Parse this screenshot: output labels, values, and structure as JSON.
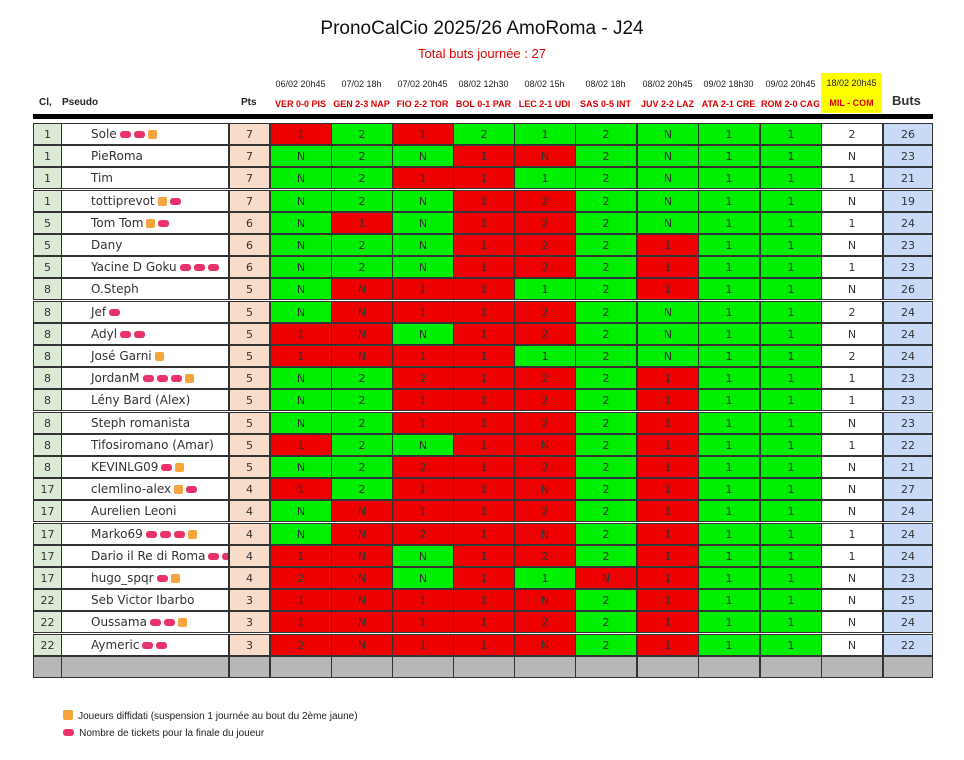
{
  "title": "PronoCalCio 2025/26 AmoRoma - J24",
  "subtitle": "Total buts journée : 27",
  "headers": {
    "rank": "Cl,",
    "name": "Pseudo",
    "pts": "Pts",
    "buts": "Buts"
  },
  "matches": [
    {
      "date": "06/02 20h45",
      "label": "VER 0-0 PIS"
    },
    {
      "date": "07/02 18h",
      "label": "GEN 2-3 NAP"
    },
    {
      "date": "07/02 20h45",
      "label": "FIO 2-2 TOR"
    },
    {
      "date": "08/02 12h30",
      "label": "BOL 0-1 PAR"
    },
    {
      "date": "08/02 15h",
      "label": "LEC 2-1 UDI"
    },
    {
      "date": "08/02 18h",
      "label": "SAS 0-5 INT"
    },
    {
      "date": "08/02 20h45",
      "label": "JUV 2-2 LAZ"
    },
    {
      "date": "09/02 18h30",
      "label": "ATA 2-1 CRE"
    },
    {
      "date": "09/02 20h45",
      "label": "ROM 2-0 CAG"
    },
    {
      "date": "18/02 20h45",
      "label": "MIL - COM"
    }
  ],
  "colors": {
    "correct": "#00ee00",
    "wrong": "#ee0000",
    "pending": "#ffffff",
    "highlight": "#ffff00",
    "rank_bg": "#dbead5",
    "pts_bg": "#f7dcc9",
    "buts_bg": "#c9daf7",
    "suspension": "#f4a63c",
    "ticket": "#e8336a"
  },
  "players": [
    {
      "rank": "1",
      "name": "Sole",
      "tickets_before": 2,
      "susp": true,
      "tickets_after": 0,
      "pts": "7",
      "picks": [
        "1",
        "2",
        "1",
        "2",
        "1",
        "2",
        "N",
        "1",
        "1",
        "2"
      ],
      "res": [
        "R",
        "G",
        "R",
        "G",
        "G",
        "G",
        "G",
        "G",
        "G",
        "W"
      ],
      "buts": "26"
    },
    {
      "rank": "1",
      "name": "PieRoma",
      "tickets_before": 0,
      "susp": false,
      "tickets_after": 0,
      "pts": "7",
      "picks": [
        "N",
        "2",
        "N",
        "1",
        "N",
        "2",
        "N",
        "1",
        "1",
        "N"
      ],
      "res": [
        "G",
        "G",
        "G",
        "R",
        "R",
        "G",
        "G",
        "G",
        "G",
        "W"
      ],
      "buts": "23"
    },
    {
      "rank": "1",
      "name": "Tim",
      "tickets_before": 0,
      "susp": false,
      "tickets_after": 0,
      "pts": "7",
      "picks": [
        "N",
        "2",
        "1",
        "1",
        "1",
        "2",
        "N",
        "1",
        "1",
        "1"
      ],
      "res": [
        "G",
        "G",
        "R",
        "R",
        "G",
        "G",
        "G",
        "G",
        "G",
        "W"
      ],
      "buts": "21"
    },
    {
      "rank": "1",
      "name": "tottiprevot",
      "tickets_before": 0,
      "susp": true,
      "tickets_after": 1,
      "pts": "7",
      "picks": [
        "N",
        "2",
        "N",
        "1",
        "2",
        "2",
        "N",
        "1",
        "1",
        "N"
      ],
      "res": [
        "G",
        "G",
        "G",
        "R",
        "R",
        "G",
        "G",
        "G",
        "G",
        "W"
      ],
      "buts": "19"
    },
    {
      "rank": "5",
      "name": "Tom Tom",
      "tickets_before": 0,
      "susp": true,
      "tickets_after": 1,
      "pts": "6",
      "picks": [
        "N",
        "1",
        "N",
        "1",
        "2",
        "2",
        "N",
        "1",
        "1",
        "1"
      ],
      "res": [
        "G",
        "R",
        "G",
        "R",
        "R",
        "G",
        "G",
        "G",
        "G",
        "W"
      ],
      "buts": "24"
    },
    {
      "rank": "5",
      "name": "Dany",
      "tickets_before": 0,
      "susp": false,
      "tickets_after": 0,
      "pts": "6",
      "picks": [
        "N",
        "2",
        "N",
        "1",
        "2",
        "2",
        "1",
        "1",
        "1",
        "N"
      ],
      "res": [
        "G",
        "G",
        "G",
        "R",
        "R",
        "G",
        "R",
        "G",
        "G",
        "W"
      ],
      "buts": "23"
    },
    {
      "rank": "5",
      "name": "Yacine D Goku",
      "tickets_before": 3,
      "susp": false,
      "tickets_after": 0,
      "pts": "6",
      "picks": [
        "N",
        "2",
        "N",
        "1",
        "2",
        "2",
        "1",
        "1",
        "1",
        "1"
      ],
      "res": [
        "G",
        "G",
        "G",
        "R",
        "R",
        "G",
        "R",
        "G",
        "G",
        "W"
      ],
      "buts": "23"
    },
    {
      "rank": "8",
      "name": "O.Steph",
      "tickets_before": 0,
      "susp": false,
      "tickets_after": 0,
      "pts": "5",
      "picks": [
        "N",
        "N",
        "1",
        "1",
        "1",
        "2",
        "1",
        "1",
        "1",
        "N"
      ],
      "res": [
        "G",
        "R",
        "R",
        "R",
        "G",
        "G",
        "R",
        "G",
        "G",
        "W"
      ],
      "buts": "26"
    },
    {
      "rank": "8",
      "name": "Jef",
      "tickets_before": 1,
      "susp": false,
      "tickets_after": 0,
      "pts": "5",
      "picks": [
        "N",
        "N",
        "1",
        "1",
        "2",
        "2",
        "N",
        "1",
        "1",
        "2"
      ],
      "res": [
        "G",
        "R",
        "R",
        "R",
        "R",
        "G",
        "G",
        "G",
        "G",
        "W"
      ],
      "buts": "24"
    },
    {
      "rank": "8",
      "name": "Adyl",
      "tickets_before": 2,
      "susp": false,
      "tickets_after": 0,
      "pts": "5",
      "picks": [
        "1",
        "N",
        "N",
        "1",
        "2",
        "2",
        "N",
        "1",
        "1",
        "N"
      ],
      "res": [
        "R",
        "R",
        "G",
        "R",
        "R",
        "G",
        "G",
        "G",
        "G",
        "W"
      ],
      "buts": "24"
    },
    {
      "rank": "8",
      "name": "José Garni",
      "tickets_before": 0,
      "susp": true,
      "tickets_after": 0,
      "pts": "5",
      "picks": [
        "1",
        "N",
        "1",
        "1",
        "1",
        "2",
        "N",
        "1",
        "1",
        "2"
      ],
      "res": [
        "R",
        "R",
        "R",
        "R",
        "G",
        "G",
        "G",
        "G",
        "G",
        "W"
      ],
      "buts": "24"
    },
    {
      "rank": "8",
      "name": "JordanM",
      "tickets_before": 3,
      "susp": true,
      "tickets_after": 0,
      "pts": "5",
      "picks": [
        "N",
        "2",
        "2",
        "1",
        "2",
        "2",
        "1",
        "1",
        "1",
        "1"
      ],
      "res": [
        "G",
        "G",
        "R",
        "R",
        "R",
        "G",
        "R",
        "G",
        "G",
        "W"
      ],
      "buts": "23"
    },
    {
      "rank": "8",
      "name": "Lény Bard (Alex)",
      "tickets_before": 0,
      "susp": false,
      "tickets_after": 0,
      "pts": "5",
      "picks": [
        "N",
        "2",
        "1",
        "1",
        "2",
        "2",
        "1",
        "1",
        "1",
        "1"
      ],
      "res": [
        "G",
        "G",
        "R",
        "R",
        "R",
        "G",
        "R",
        "G",
        "G",
        "W"
      ],
      "buts": "23"
    },
    {
      "rank": "8",
      "name": "Steph romanista",
      "tickets_before": 0,
      "susp": false,
      "tickets_after": 0,
      "pts": "5",
      "picks": [
        "N",
        "2",
        "1",
        "1",
        "2",
        "2",
        "1",
        "1",
        "1",
        "N"
      ],
      "res": [
        "G",
        "G",
        "R",
        "R",
        "R",
        "G",
        "R",
        "G",
        "G",
        "W"
      ],
      "buts": "23"
    },
    {
      "rank": "8",
      "name": "Tifosiromano (Amar)",
      "tickets_before": 0,
      "susp": false,
      "tickets_after": 0,
      "pts": "5",
      "picks": [
        "1",
        "2",
        "N",
        "1",
        "N",
        "2",
        "1",
        "1",
        "1",
        "1"
      ],
      "res": [
        "R",
        "G",
        "G",
        "R",
        "R",
        "G",
        "R",
        "G",
        "G",
        "W"
      ],
      "buts": "22"
    },
    {
      "rank": "8",
      "name": "KEVINLG09",
      "tickets_before": 1,
      "susp": true,
      "tickets_after": 0,
      "pts": "5",
      "picks": [
        "N",
        "2",
        "2",
        "1",
        "2",
        "2",
        "1",
        "1",
        "1",
        "N"
      ],
      "res": [
        "G",
        "G",
        "R",
        "R",
        "R",
        "G",
        "R",
        "G",
        "G",
        "W"
      ],
      "buts": "21"
    },
    {
      "rank": "17",
      "name": "clemlino-alex",
      "tickets_before": 0,
      "susp": true,
      "tickets_after": 1,
      "pts": "4",
      "picks": [
        "1",
        "2",
        "1",
        "1",
        "N",
        "2",
        "1",
        "1",
        "1",
        "N"
      ],
      "res": [
        "R",
        "G",
        "R",
        "R",
        "R",
        "G",
        "R",
        "G",
        "G",
        "W"
      ],
      "buts": "27"
    },
    {
      "rank": "17",
      "name": "Aurelien Leoni",
      "tickets_before": 0,
      "susp": false,
      "tickets_after": 0,
      "pts": "4",
      "picks": [
        "N",
        "N",
        "1",
        "1",
        "2",
        "2",
        "1",
        "1",
        "1",
        "N"
      ],
      "res": [
        "G",
        "R",
        "R",
        "R",
        "R",
        "G",
        "R",
        "G",
        "G",
        "W"
      ],
      "buts": "24"
    },
    {
      "rank": "17",
      "name": "Marko69",
      "tickets_before": 3,
      "susp": true,
      "tickets_after": 0,
      "pts": "4",
      "picks": [
        "N",
        "N",
        "2",
        "1",
        "N",
        "2",
        "1",
        "1",
        "1",
        "1"
      ],
      "res": [
        "G",
        "R",
        "R",
        "R",
        "R",
        "G",
        "R",
        "G",
        "G",
        "W"
      ],
      "buts": "24"
    },
    {
      "rank": "17",
      "name": "Dario il Re di Roma",
      "tickets_before": 2,
      "susp": false,
      "tickets_after": 0,
      "pts": "4",
      "picks": [
        "1",
        "N",
        "N",
        "1",
        "2",
        "2",
        "1",
        "1",
        "1",
        "1"
      ],
      "res": [
        "R",
        "R",
        "G",
        "R",
        "R",
        "G",
        "R",
        "G",
        "G",
        "W"
      ],
      "buts": "24"
    },
    {
      "rank": "17",
      "name": "hugo_spqr",
      "tickets_before": 1,
      "susp": true,
      "tickets_after": 0,
      "pts": "4",
      "picks": [
        "2",
        "N",
        "N",
        "1",
        "1",
        "N",
        "1",
        "1",
        "1",
        "N"
      ],
      "res": [
        "R",
        "R",
        "G",
        "R",
        "G",
        "R",
        "R",
        "G",
        "G",
        "W"
      ],
      "buts": "23"
    },
    {
      "rank": "22",
      "name": "Seb Victor Ibarbo",
      "tickets_before": 0,
      "susp": false,
      "tickets_after": 0,
      "pts": "3",
      "picks": [
        "1",
        "N",
        "1",
        "1",
        "N",
        "2",
        "1",
        "1",
        "1",
        "N"
      ],
      "res": [
        "R",
        "R",
        "R",
        "R",
        "R",
        "G",
        "R",
        "G",
        "G",
        "W"
      ],
      "buts": "25"
    },
    {
      "rank": "22",
      "name": "Oussama",
      "tickets_before": 2,
      "susp": true,
      "tickets_after": 0,
      "pts": "3",
      "picks": [
        "1",
        "N",
        "1",
        "1",
        "2",
        "2",
        "1",
        "1",
        "1",
        "N"
      ],
      "res": [
        "R",
        "R",
        "R",
        "R",
        "R",
        "G",
        "R",
        "G",
        "G",
        "W"
      ],
      "buts": "24"
    },
    {
      "rank": "22",
      "name": "Aymeric",
      "tickets_before": 2,
      "susp": false,
      "tickets_after": 0,
      "pts": "3",
      "picks": [
        "2",
        "N",
        "1",
        "1",
        "N",
        "2",
        "1",
        "1",
        "1",
        "N"
      ],
      "res": [
        "R",
        "R",
        "R",
        "R",
        "R",
        "G",
        "R",
        "G",
        "G",
        "W"
      ],
      "buts": "22"
    }
  ],
  "legend": {
    "suspension": "Joueurs diffidati (suspension 1 journée au bout du 2ème jaune)",
    "tickets": "Nombre de tickets pour la finale du joueur"
  }
}
